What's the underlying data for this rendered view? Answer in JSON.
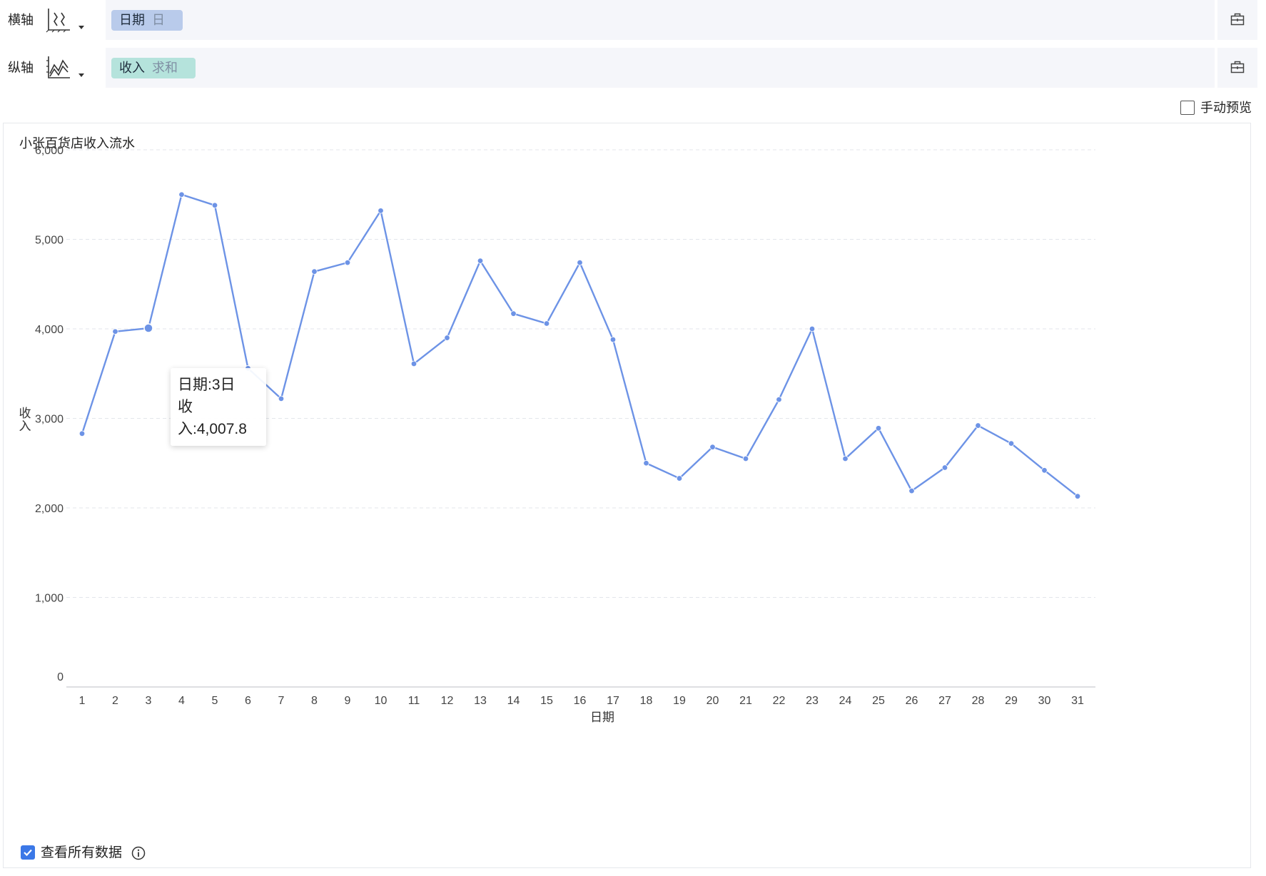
{
  "x_axis": {
    "label": "横轴",
    "type_icon": "x-axis-type-icon",
    "field": {
      "name": "日期",
      "granularity": "日",
      "color": "#b9cbeb"
    }
  },
  "y_axis": {
    "label": "纵轴",
    "type_icon": "line-chart-icon",
    "field": {
      "name": "收入",
      "aggregate": "求和",
      "color": "#b5e3dc"
    }
  },
  "manual_preview": {
    "label": "手动预览",
    "checked": false
  },
  "view_all": {
    "label": "查看所有数据",
    "checked": true
  },
  "tooltip": {
    "line1": "日期:3日",
    "line2": "收入:4,007.8"
  },
  "chart_data": {
    "type": "line",
    "title": "小张百货店收入流水",
    "xlabel": "日期",
    "ylabel": "收入",
    "categories": [
      "1",
      "2",
      "3",
      "4",
      "5",
      "6",
      "7",
      "8",
      "9",
      "10",
      "11",
      "12",
      "13",
      "14",
      "15",
      "16",
      "17",
      "18",
      "19",
      "20",
      "21",
      "22",
      "23",
      "24",
      "25",
      "26",
      "27",
      "28",
      "29",
      "30",
      "31"
    ],
    "series": [
      {
        "color": "#6d93e6",
        "values": [
          2830,
          3970,
          4007.8,
          5500,
          5380,
          3560,
          3220,
          4640,
          4740,
          5320,
          3610,
          3900,
          4760,
          4170,
          4060,
          4740,
          3880,
          2500,
          2330,
          2680,
          2550,
          3210,
          4000,
          2550,
          2890,
          2190,
          2450,
          2920,
          2720,
          2420,
          2130
        ]
      }
    ],
    "ylim": [
      0,
      6000
    ],
    "yticks": [
      {
        "value": 0,
        "label": "0"
      },
      {
        "value": 1000,
        "label": "1,000"
      },
      {
        "value": 2000,
        "label": "2,000"
      },
      {
        "value": 3000,
        "label": "3,000"
      },
      {
        "value": 4000,
        "label": "4,000"
      },
      {
        "value": 5000,
        "label": "5,000"
      },
      {
        "value": 6000,
        "label": "6,000"
      }
    ],
    "grid": true,
    "highlighted_index": 2
  }
}
